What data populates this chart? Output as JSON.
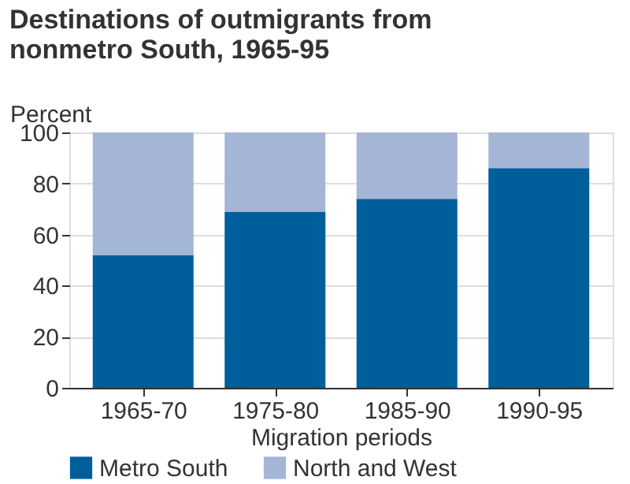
{
  "chart_data": {
    "type": "bar",
    "title": "Destinations of outmigrants from nonmetro South, 1965-95",
    "xlabel": "Migration periods",
    "ylabel": "Percent",
    "categories": [
      "1965-70",
      "1975-80",
      "1985-90",
      "1990-95"
    ],
    "stacked": true,
    "series": [
      {
        "name": "Metro South",
        "color": "#005e9b",
        "values": [
          52,
          69,
          74,
          86
        ]
      },
      {
        "name": "North and West",
        "color": "#a5b5d6",
        "values": [
          48,
          31,
          26,
          14
        ]
      }
    ],
    "ylim": [
      0,
      100
    ],
    "yticks": [
      0,
      20,
      40,
      60,
      80,
      100
    ],
    "grid": "y",
    "legend": "bottom"
  }
}
